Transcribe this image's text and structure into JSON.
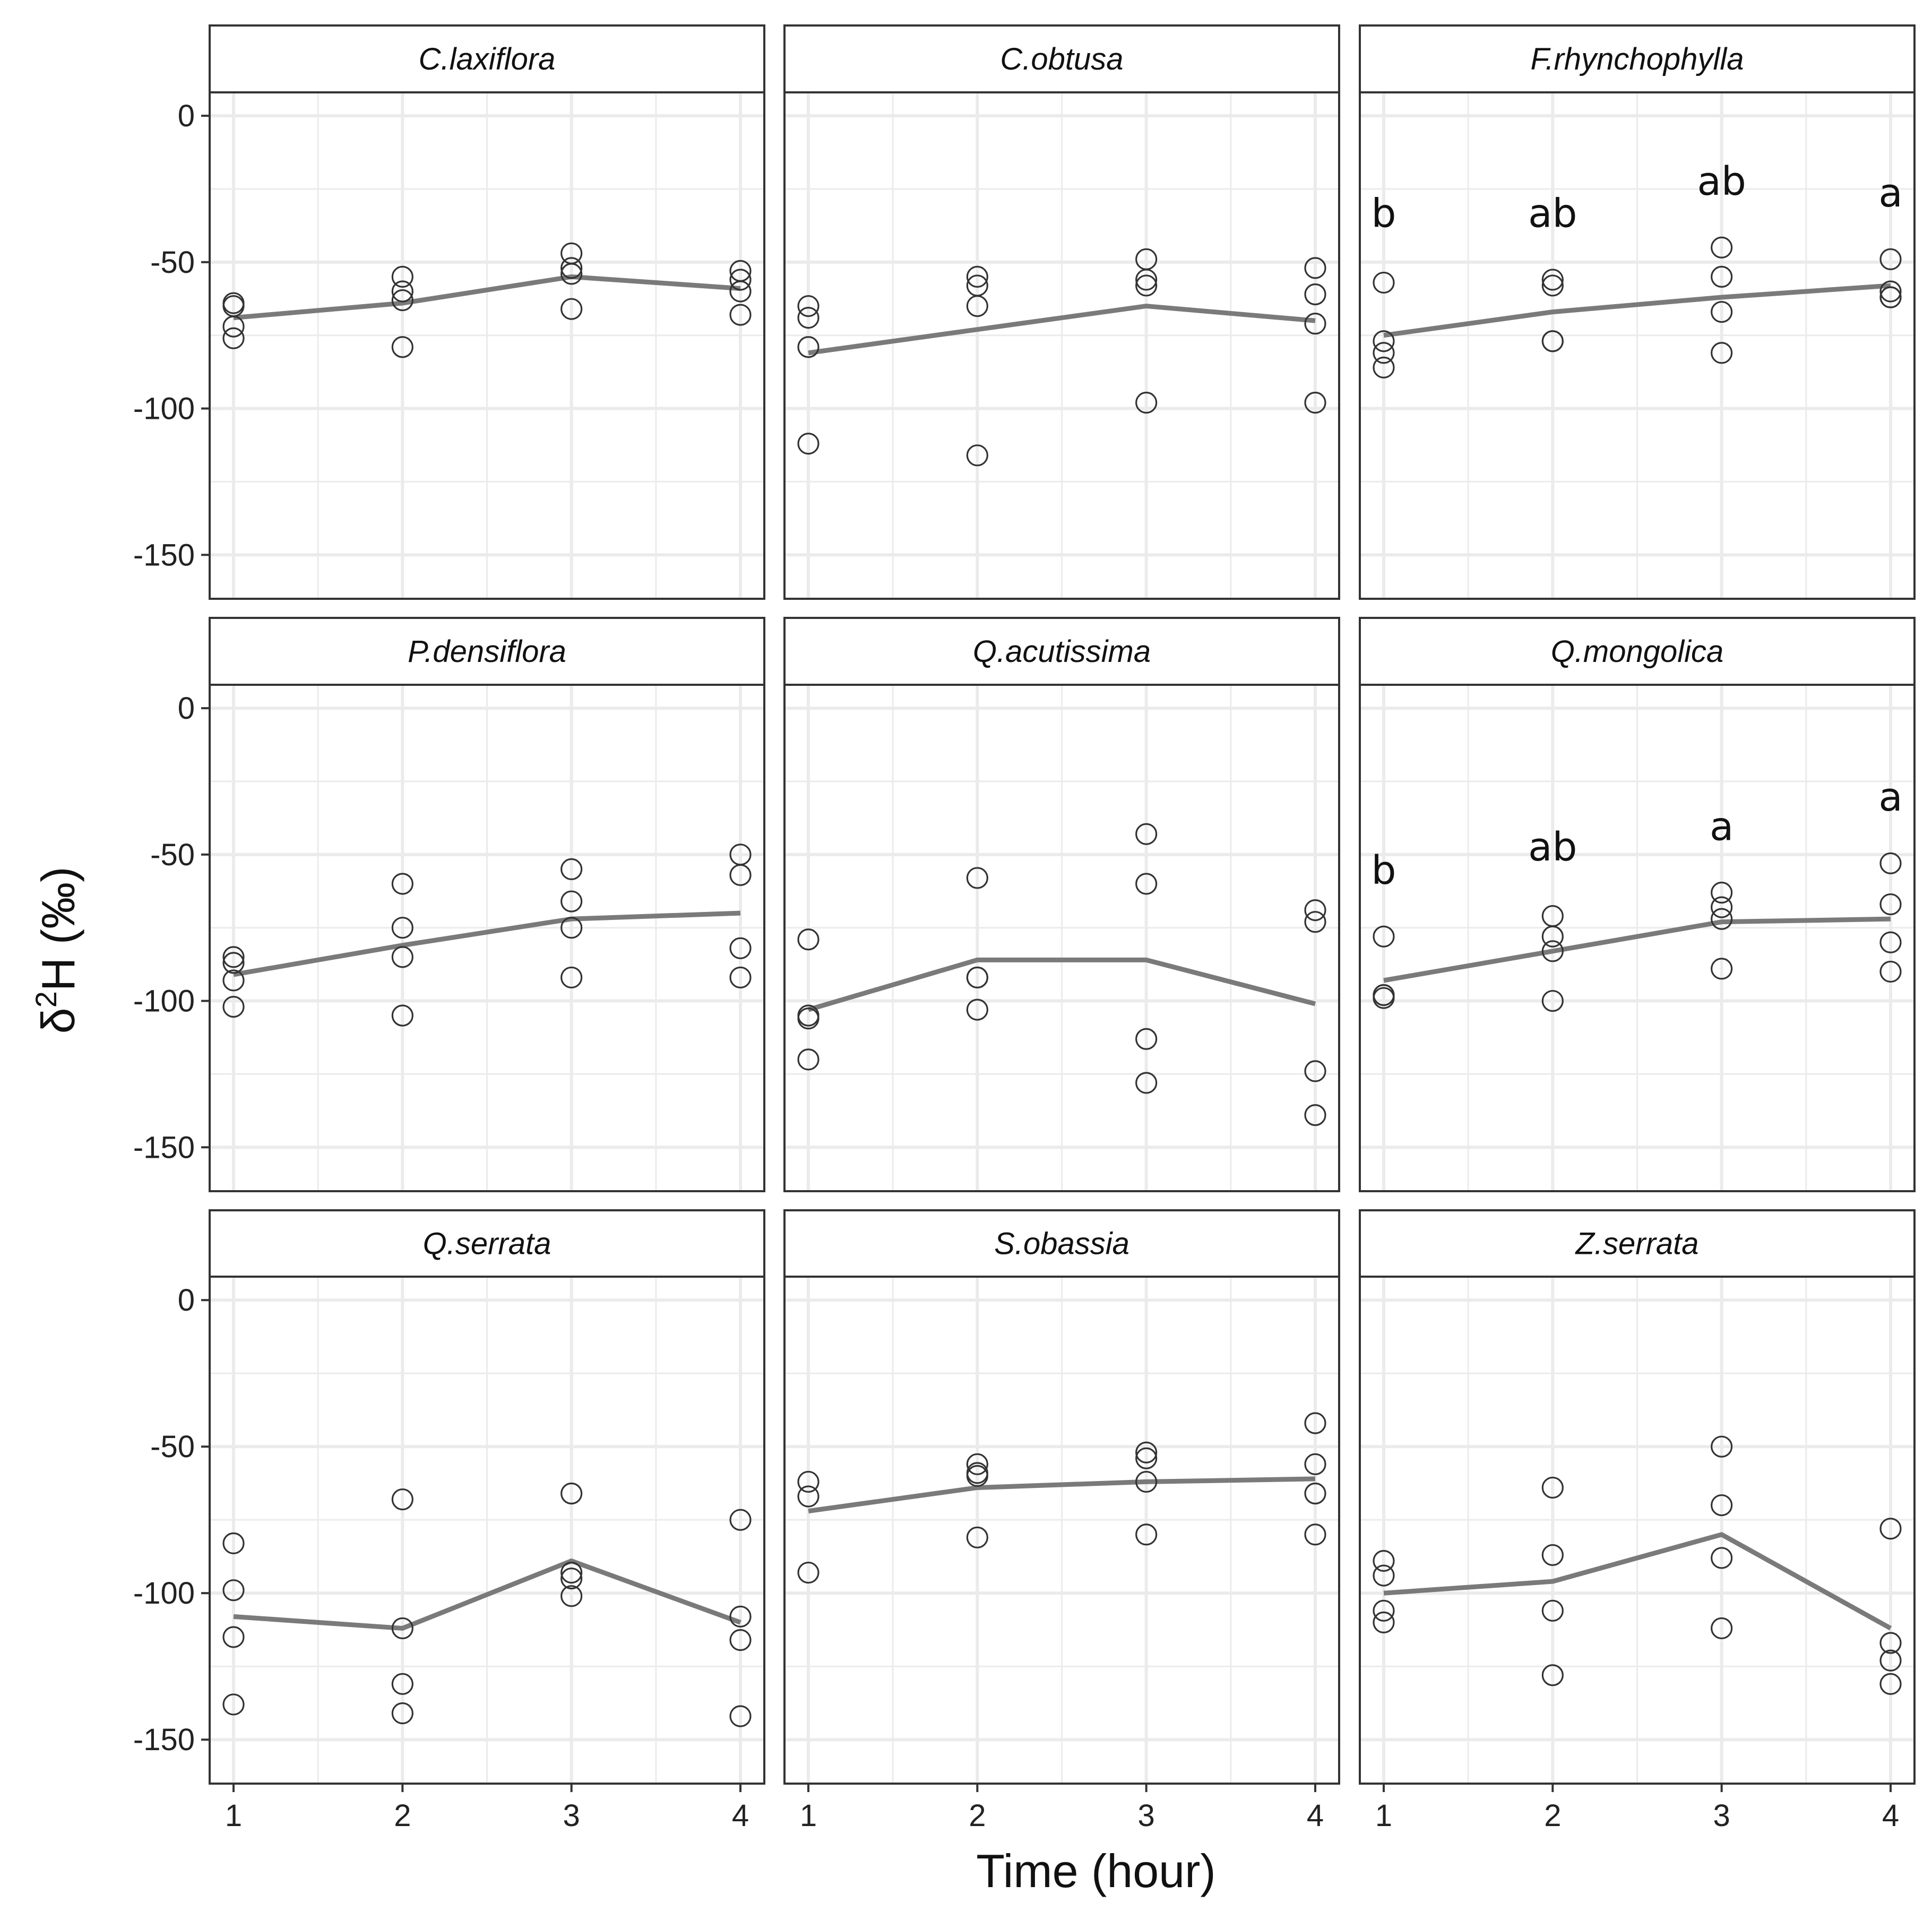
{
  "chart_data": {
    "type": "scatter",
    "layout": "facet-grid-3x3",
    "xlabel": "Time (hour)",
    "ylabel": "δ²H (‰)",
    "ylabel_parts": {
      "symbol": "δ",
      "superscript": "2",
      "rest": "H (‰)"
    },
    "xlim": [
      1,
      4
    ],
    "ylim": [
      -165,
      8
    ],
    "x_ticks": [
      1,
      2,
      3,
      4
    ],
    "x_tick_labels": [
      "1",
      "2",
      "3",
      "4"
    ],
    "y_ticks": [
      0,
      -50,
      -100,
      -150
    ],
    "y_tick_labels": [
      "0",
      "-50",
      "-100",
      "-150"
    ],
    "colors": {
      "points": "#333333",
      "line": "#7a7a7a",
      "grid": "#ebebeb",
      "strip": "#ffffff",
      "border": "#333333"
    },
    "panels": [
      {
        "title": "C.laxiflora",
        "points": [
          {
            "x": 1,
            "y": -64
          },
          {
            "x": 1,
            "y": -65
          },
          {
            "x": 1,
            "y": -72
          },
          {
            "x": 1,
            "y": -76
          },
          {
            "x": 2,
            "y": -55
          },
          {
            "x": 2,
            "y": -60
          },
          {
            "x": 2,
            "y": -63
          },
          {
            "x": 2,
            "y": -79
          },
          {
            "x": 3,
            "y": -47
          },
          {
            "x": 3,
            "y": -52
          },
          {
            "x": 3,
            "y": -54
          },
          {
            "x": 3,
            "y": -66
          },
          {
            "x": 4,
            "y": -53
          },
          {
            "x": 4,
            "y": -56
          },
          {
            "x": 4,
            "y": -60
          },
          {
            "x": 4,
            "y": -68
          }
        ],
        "line": [
          {
            "x": 1,
            "y": -69
          },
          {
            "x": 2,
            "y": -64
          },
          {
            "x": 3,
            "y": -55
          },
          {
            "x": 4,
            "y": -59
          }
        ],
        "letters": []
      },
      {
        "title": "C.obtusa",
        "points": [
          {
            "x": 1,
            "y": -65
          },
          {
            "x": 1,
            "y": -69
          },
          {
            "x": 1,
            "y": -79
          },
          {
            "x": 1,
            "y": -112
          },
          {
            "x": 2,
            "y": -55
          },
          {
            "x": 2,
            "y": -58
          },
          {
            "x": 2,
            "y": -65
          },
          {
            "x": 2,
            "y": -116
          },
          {
            "x": 3,
            "y": -49
          },
          {
            "x": 3,
            "y": -56
          },
          {
            "x": 3,
            "y": -58
          },
          {
            "x": 3,
            "y": -98
          },
          {
            "x": 4,
            "y": -52
          },
          {
            "x": 4,
            "y": -61
          },
          {
            "x": 4,
            "y": -71
          },
          {
            "x": 4,
            "y": -98
          }
        ],
        "line": [
          {
            "x": 1,
            "y": -81
          },
          {
            "x": 2,
            "y": -73
          },
          {
            "x": 3,
            "y": -65
          },
          {
            "x": 4,
            "y": -70
          }
        ],
        "letters": []
      },
      {
        "title": "F.rhynchophylla",
        "points": [
          {
            "x": 1,
            "y": -57
          },
          {
            "x": 1,
            "y": -77
          },
          {
            "x": 1,
            "y": -81
          },
          {
            "x": 1,
            "y": -86
          },
          {
            "x": 2,
            "y": -56
          },
          {
            "x": 2,
            "y": -58
          },
          {
            "x": 2,
            "y": -77
          },
          {
            "x": 2,
            "y": -77
          },
          {
            "x": 3,
            "y": -45
          },
          {
            "x": 3,
            "y": -55
          },
          {
            "x": 3,
            "y": -67
          },
          {
            "x": 3,
            "y": -81
          },
          {
            "x": 4,
            "y": -49
          },
          {
            "x": 4,
            "y": -60
          },
          {
            "x": 4,
            "y": -62
          },
          {
            "x": 4,
            "y": -62
          }
        ],
        "line": [
          {
            "x": 1,
            "y": -75
          },
          {
            "x": 2,
            "y": -67
          },
          {
            "x": 3,
            "y": -62
          },
          {
            "x": 4,
            "y": -58
          }
        ],
        "letters": [
          {
            "x": 1,
            "label": "b",
            "y": -38
          },
          {
            "x": 2,
            "label": "ab",
            "y": -38
          },
          {
            "x": 3,
            "label": "ab",
            "y": -27
          },
          {
            "x": 4,
            "label": "a",
            "y": -31
          }
        ]
      },
      {
        "title": "P.densiflora",
        "points": [
          {
            "x": 1,
            "y": -85
          },
          {
            "x": 1,
            "y": -87
          },
          {
            "x": 1,
            "y": -93
          },
          {
            "x": 1,
            "y": -102
          },
          {
            "x": 2,
            "y": -60
          },
          {
            "x": 2,
            "y": -75
          },
          {
            "x": 2,
            "y": -85
          },
          {
            "x": 2,
            "y": -105
          },
          {
            "x": 3,
            "y": -55
          },
          {
            "x": 3,
            "y": -66
          },
          {
            "x": 3,
            "y": -75
          },
          {
            "x": 3,
            "y": -92
          },
          {
            "x": 4,
            "y": -50
          },
          {
            "x": 4,
            "y": -57
          },
          {
            "x": 4,
            "y": -82
          },
          {
            "x": 4,
            "y": -92
          }
        ],
        "line": [
          {
            "x": 1,
            "y": -91
          },
          {
            "x": 2,
            "y": -81
          },
          {
            "x": 3,
            "y": -72
          },
          {
            "x": 4,
            "y": -70
          }
        ],
        "letters": []
      },
      {
        "title": "Q.acutissima",
        "points": [
          {
            "x": 1,
            "y": -79
          },
          {
            "x": 1,
            "y": -105
          },
          {
            "x": 1,
            "y": -106
          },
          {
            "x": 1,
            "y": -120
          },
          {
            "x": 2,
            "y": -58
          },
          {
            "x": 2,
            "y": -92
          },
          {
            "x": 2,
            "y": -92
          },
          {
            "x": 2,
            "y": -103
          },
          {
            "x": 3,
            "y": -43
          },
          {
            "x": 3,
            "y": -60
          },
          {
            "x": 3,
            "y": -113
          },
          {
            "x": 3,
            "y": -128
          },
          {
            "x": 4,
            "y": -69
          },
          {
            "x": 4,
            "y": -73
          },
          {
            "x": 4,
            "y": -124
          },
          {
            "x": 4,
            "y": -139
          }
        ],
        "line": [
          {
            "x": 1,
            "y": -103
          },
          {
            "x": 2,
            "y": -86
          },
          {
            "x": 3,
            "y": -86
          },
          {
            "x": 4,
            "y": -101
          }
        ],
        "letters": []
      },
      {
        "title": "Q.mongolica",
        "points": [
          {
            "x": 1,
            "y": -78
          },
          {
            "x": 1,
            "y": -98
          },
          {
            "x": 1,
            "y": -98
          },
          {
            "x": 1,
            "y": -99
          },
          {
            "x": 2,
            "y": -71
          },
          {
            "x": 2,
            "y": -78
          },
          {
            "x": 2,
            "y": -83
          },
          {
            "x": 2,
            "y": -100
          },
          {
            "x": 3,
            "y": -63
          },
          {
            "x": 3,
            "y": -68
          },
          {
            "x": 3,
            "y": -72
          },
          {
            "x": 3,
            "y": -89
          },
          {
            "x": 4,
            "y": -53
          },
          {
            "x": 4,
            "y": -67
          },
          {
            "x": 4,
            "y": -80
          },
          {
            "x": 4,
            "y": -90
          }
        ],
        "line": [
          {
            "x": 1,
            "y": -93
          },
          {
            "x": 2,
            "y": -83
          },
          {
            "x": 3,
            "y": -73
          },
          {
            "x": 4,
            "y": -72
          }
        ],
        "letters": [
          {
            "x": 1,
            "label": "b",
            "y": -60
          },
          {
            "x": 2,
            "label": "ab",
            "y": -52
          },
          {
            "x": 3,
            "label": "a",
            "y": -45
          },
          {
            "x": 4,
            "label": "a",
            "y": -35
          }
        ]
      },
      {
        "title": "Q.serrata",
        "points": [
          {
            "x": 1,
            "y": -83
          },
          {
            "x": 1,
            "y": -99
          },
          {
            "x": 1,
            "y": -115
          },
          {
            "x": 1,
            "y": -138
          },
          {
            "x": 2,
            "y": -68
          },
          {
            "x": 2,
            "y": -112
          },
          {
            "x": 2,
            "y": -131
          },
          {
            "x": 2,
            "y": -141
          },
          {
            "x": 3,
            "y": -66
          },
          {
            "x": 3,
            "y": -93
          },
          {
            "x": 3,
            "y": -95
          },
          {
            "x": 3,
            "y": -101
          },
          {
            "x": 4,
            "y": -75
          },
          {
            "x": 4,
            "y": -108
          },
          {
            "x": 4,
            "y": -116
          },
          {
            "x": 4,
            "y": -142
          }
        ],
        "line": [
          {
            "x": 1,
            "y": -108
          },
          {
            "x": 2,
            "y": -112
          },
          {
            "x": 3,
            "y": -89
          },
          {
            "x": 4,
            "y": -110
          }
        ],
        "letters": []
      },
      {
        "title": "S.obassia",
        "points": [
          {
            "x": 1,
            "y": -62
          },
          {
            "x": 1,
            "y": -67
          },
          {
            "x": 1,
            "y": -93
          },
          {
            "x": 2,
            "y": -56
          },
          {
            "x": 2,
            "y": -59
          },
          {
            "x": 2,
            "y": -60
          },
          {
            "x": 2,
            "y": -81
          },
          {
            "x": 3,
            "y": -52
          },
          {
            "x": 3,
            "y": -54
          },
          {
            "x": 3,
            "y": -62
          },
          {
            "x": 3,
            "y": -80
          },
          {
            "x": 4,
            "y": -42
          },
          {
            "x": 4,
            "y": -56
          },
          {
            "x": 4,
            "y": -66
          },
          {
            "x": 4,
            "y": -80
          }
        ],
        "line": [
          {
            "x": 1,
            "y": -72
          },
          {
            "x": 2,
            "y": -64
          },
          {
            "x": 3,
            "y": -62
          },
          {
            "x": 4,
            "y": -61
          }
        ],
        "letters": []
      },
      {
        "title": "Z.serrata",
        "points": [
          {
            "x": 1,
            "y": -89
          },
          {
            "x": 1,
            "y": -94
          },
          {
            "x": 1,
            "y": -106
          },
          {
            "x": 1,
            "y": -110
          },
          {
            "x": 2,
            "y": -64
          },
          {
            "x": 2,
            "y": -87
          },
          {
            "x": 2,
            "y": -106
          },
          {
            "x": 2,
            "y": -128
          },
          {
            "x": 3,
            "y": -50
          },
          {
            "x": 3,
            "y": -70
          },
          {
            "x": 3,
            "y": -88
          },
          {
            "x": 3,
            "y": -112
          },
          {
            "x": 4,
            "y": -78
          },
          {
            "x": 4,
            "y": -117
          },
          {
            "x": 4,
            "y": -123
          },
          {
            "x": 4,
            "y": -131
          }
        ],
        "line": [
          {
            "x": 1,
            "y": -100
          },
          {
            "x": 2,
            "y": -96
          },
          {
            "x": 3,
            "y": -80
          },
          {
            "x": 4,
            "y": -112
          }
        ],
        "letters": []
      }
    ]
  }
}
